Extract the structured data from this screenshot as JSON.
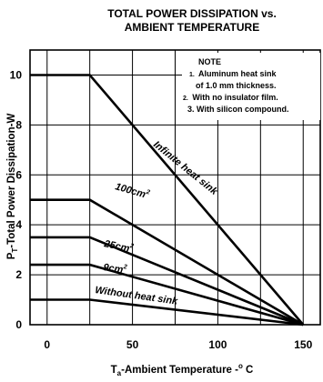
{
  "chart_data": {
    "type": "line",
    "title": [
      "TOTAL POWER DISSIPATION vs.",
      "AMBIENT TEMPERATURE"
    ],
    "xlabel": {
      "prefix": "T",
      "subscript": "a",
      "text": "-Ambient Temperature -",
      "degree": "o",
      "unit": " C"
    },
    "ylabel": {
      "prefix": "P",
      "subscript": "T",
      "text": "-Total Power Dissipation-W"
    },
    "xlim": [
      -10,
      160
    ],
    "ylim": [
      0,
      11
    ],
    "x_ticks": [
      0,
      50,
      100,
      150
    ],
    "y_ticks": [
      0,
      2,
      4,
      6,
      8,
      10
    ],
    "grid": true,
    "series": [
      {
        "name": "Infinite heat sink",
        "points": [
          [
            -10,
            10
          ],
          [
            25,
            10
          ],
          [
            150,
            0
          ]
        ]
      },
      {
        "name": "100cm",
        "name_sup": "2",
        "points": [
          [
            -10,
            5
          ],
          [
            25,
            5
          ],
          [
            150,
            0
          ]
        ]
      },
      {
        "name": "25cm",
        "name_sup": "2",
        "points": [
          [
            -10,
            3.5
          ],
          [
            25,
            3.5
          ],
          [
            150,
            0
          ]
        ]
      },
      {
        "name": "9cm",
        "name_sup": "2",
        "points": [
          [
            -10,
            2.4
          ],
          [
            25,
            2.4
          ],
          [
            150,
            0
          ]
        ]
      },
      {
        "name": "Without heat sink",
        "points": [
          [
            -10,
            1.0
          ],
          [
            25,
            1.0
          ],
          [
            150,
            0
          ]
        ]
      }
    ],
    "note": {
      "title": "NOTE",
      "lines": [
        {
          "num": "1.",
          "text": "Aluminum heat sink"
        },
        {
          "num": "",
          "text": "of 1.0 mm thickness."
        },
        {
          "num": "2.",
          "text": "With no insulator film."
        },
        {
          "num": "3.",
          "text": "With silicon compound."
        }
      ]
    }
  }
}
